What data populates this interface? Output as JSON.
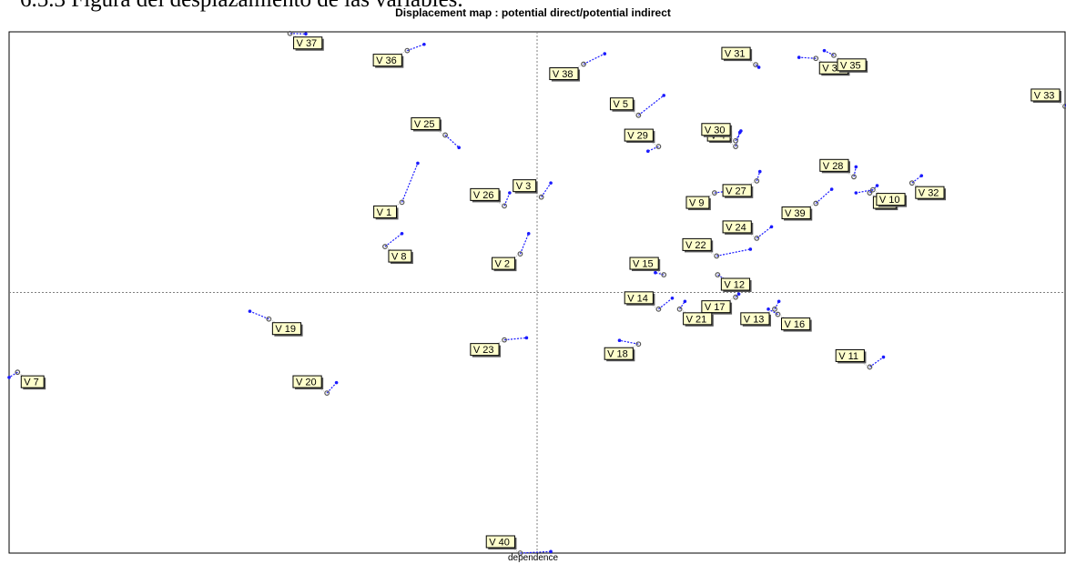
{
  "document_heading": "6.5.3        Figura del desplazamiento de las variables.",
  "chart_data": {
    "type": "scatter",
    "title": "Displacement map :  potential direct/potential indirect",
    "xlabel": "dependence",
    "ylabel": "",
    "xlim": [
      0,
      100
    ],
    "ylim": [
      0,
      100
    ],
    "grid": false,
    "colors": {
      "from": "#808080",
      "to": "#1a1aff",
      "label_bg": "#ffffcc"
    },
    "variables": [
      {
        "name": "V 1",
        "from": [
          37.2,
          67.3
        ],
        "to": [
          38.7,
          74.8
        ]
      },
      {
        "name": "V 2",
        "from": [
          48.4,
          57.4
        ],
        "to": [
          49.2,
          61.3
        ]
      },
      {
        "name": "V 3",
        "from": [
          50.4,
          68.3
        ],
        "to": [
          51.3,
          71.0
        ]
      },
      {
        "name": "V 4",
        "from": [
          68.8,
          78.0
        ],
        "to": [
          69.2,
          80.7
        ]
      },
      {
        "name": "V 5",
        "from": [
          59.6,
          84.0
        ],
        "to": [
          62.0,
          87.8
        ]
      },
      {
        "name": "V 6",
        "from": [
          81.5,
          69.1
        ],
        "to": [
          82.2,
          70.5
        ]
      },
      {
        "name": "V 7",
        "from": [
          0.8,
          34.7
        ],
        "to": [
          0.0,
          33.7
        ]
      },
      {
        "name": "V 8",
        "from": [
          35.6,
          58.8
        ],
        "to": [
          37.2,
          61.3
        ]
      },
      {
        "name": "V 9",
        "from": [
          66.8,
          69.1
        ],
        "to": [
          68.3,
          69.5
        ]
      },
      {
        "name": "V 10",
        "from": [
          81.8,
          69.7
        ],
        "to": [
          80.2,
          69.1
        ]
      },
      {
        "name": "V 11",
        "from": [
          81.5,
          35.7
        ],
        "to": [
          82.8,
          37.6
        ]
      },
      {
        "name": "V 12",
        "from": [
          67.1,
          53.4
        ],
        "to": [
          69.2,
          50.8
        ]
      },
      {
        "name": "V 13",
        "from": [
          72.5,
          46.8
        ],
        "to": [
          72.9,
          48.3
        ]
      },
      {
        "name": "V 14",
        "from": [
          61.5,
          46.8
        ],
        "to": [
          62.8,
          48.9
        ]
      },
      {
        "name": "V 15",
        "from": [
          62.0,
          53.4
        ],
        "to": [
          61.2,
          53.8
        ]
      },
      {
        "name": "V 16",
        "from": [
          72.8,
          45.8
        ],
        "to": [
          71.9,
          46.8
        ]
      },
      {
        "name": "V 17",
        "from": [
          68.8,
          49.1
        ],
        "to": [
          69.1,
          49.7
        ]
      },
      {
        "name": "V 18",
        "from": [
          59.6,
          40.1
        ],
        "to": [
          57.8,
          40.8
        ]
      },
      {
        "name": "V 19",
        "from": [
          24.6,
          44.9
        ],
        "to": [
          22.8,
          46.4
        ]
      },
      {
        "name": "V 20",
        "from": [
          30.1,
          30.7
        ],
        "to": [
          31.0,
          32.7
        ]
      },
      {
        "name": "V 21",
        "from": [
          63.5,
          46.8
        ],
        "to": [
          64.0,
          48.3
        ]
      },
      {
        "name": "V 22",
        "from": [
          67.0,
          57.0
        ],
        "to": [
          70.2,
          58.3
        ]
      },
      {
        "name": "V 23",
        "from": [
          46.9,
          40.9
        ],
        "to": [
          49.0,
          41.3
        ]
      },
      {
        "name": "V 24",
        "from": [
          70.8,
          60.4
        ],
        "to": [
          72.2,
          62.6
        ]
      },
      {
        "name": "V 25",
        "from": [
          41.3,
          80.2
        ],
        "to": [
          42.6,
          77.8
        ]
      },
      {
        "name": "V 26",
        "from": [
          46.9,
          66.6
        ],
        "to": [
          47.4,
          69.1
        ]
      },
      {
        "name": "V 27",
        "from": [
          70.8,
          71.4
        ],
        "to": [
          71.1,
          73.2
        ]
      },
      {
        "name": "V 28",
        "from": [
          80.0,
          72.2
        ],
        "to": [
          80.2,
          74.1
        ]
      },
      {
        "name": "V 29",
        "from": [
          61.5,
          78.0
        ],
        "to": [
          60.5,
          77.1
        ]
      },
      {
        "name": "V 30",
        "from": [
          68.8,
          79.1
        ],
        "to": [
          69.3,
          81.0
        ]
      },
      {
        "name": "V 31",
        "from": [
          70.7,
          93.7
        ],
        "to": [
          71.0,
          93.2
        ]
      },
      {
        "name": "V 32",
        "from": [
          85.5,
          71.0
        ],
        "to": [
          86.4,
          72.4
        ]
      },
      {
        "name": "V 33",
        "from": [
          100.0,
          85.7
        ],
        "to": [
          100.2,
          86.0
        ]
      },
      {
        "name": "V 34",
        "from": [
          76.4,
          94.9
        ],
        "to": [
          74.8,
          95.1
        ]
      },
      {
        "name": "V 35",
        "from": [
          78.1,
          95.5
        ],
        "to": [
          77.2,
          96.4
        ]
      },
      {
        "name": "V 36",
        "from": [
          37.7,
          96.4
        ],
        "to": [
          39.3,
          97.6
        ]
      },
      {
        "name": "V 37",
        "from": [
          26.6,
          99.7
        ],
        "to": [
          28.1,
          99.6
        ]
      },
      {
        "name": "V 38",
        "from": [
          54.4,
          93.8
        ],
        "to": [
          56.4,
          95.8
        ]
      },
      {
        "name": "V 39",
        "from": [
          76.4,
          67.1
        ],
        "to": [
          77.9,
          69.8
        ]
      },
      {
        "name": "V 40",
        "from": [
          48.4,
          0.0
        ],
        "to": [
          51.3,
          0.3
        ]
      }
    ]
  }
}
